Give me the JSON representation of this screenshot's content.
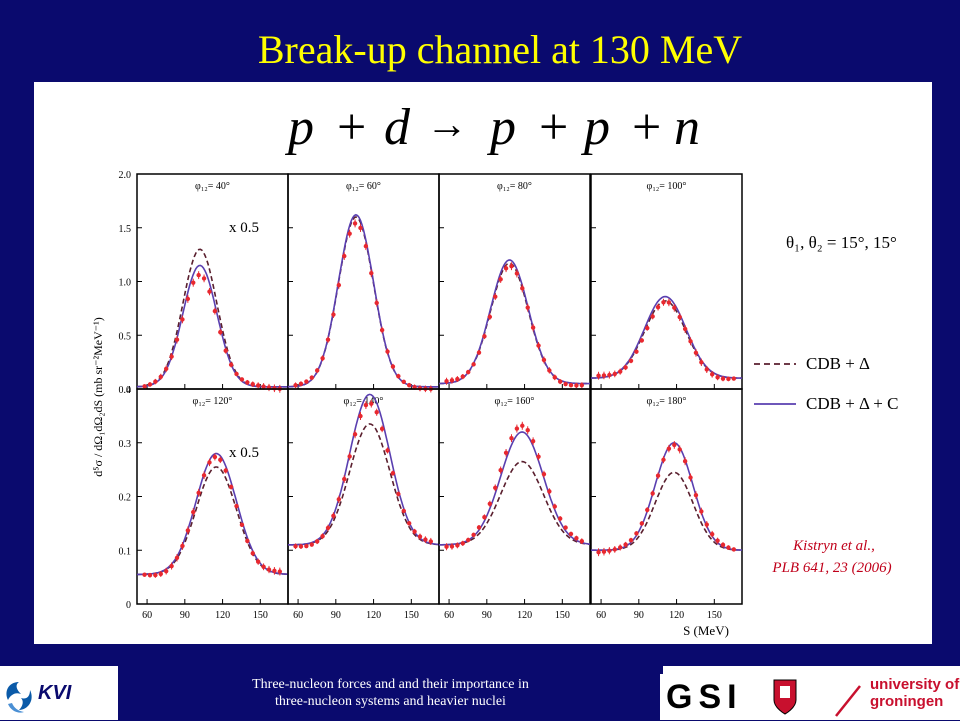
{
  "slide": {
    "title": "Break-up channel at 130 MeV",
    "footer_line1": "Three-nucleon forces and and their importance in",
    "footer_line2": "three-nucleon systems and heavier nuclei",
    "logo_kvi": "KVI",
    "logo_gsi": "GSI",
    "logo_ug_line1": "university of",
    "logo_ug_line2": "groningen",
    "colors": {
      "background": "#0a0a6e",
      "title": "#ffff00",
      "data_points": "#e8282f",
      "solid_curve": "#5a3fb0",
      "dashed_curve": "#5a1f2e",
      "reference": "#c0001a"
    }
  },
  "chart_data": {
    "type": "line",
    "reaction": {
      "p1": "p",
      "op1": "+",
      "d": "d",
      "arrow": "→",
      "p2": "p",
      "op2": "+",
      "p3": "p",
      "op3": "+",
      "n": "n"
    },
    "ylabel": "d⁵σ / dΩ₁dΩ₂dS (mb sr⁻²MeV⁻¹)",
    "xlabel": "S (MeV)",
    "xlim": [
      52,
      172
    ],
    "xticks": [
      "60",
      "90",
      "120",
      "150"
    ],
    "angles": "θ₁, θ₂ = 15°, 15°",
    "legend": {
      "dashed": "CDB + Δ",
      "solid": "CDB + Δ + C"
    },
    "reference_line1": "Kistryn et al.,",
    "reference_line2": "PLB 641, 23 (2006)",
    "rows": [
      {
        "ylim": [
          0,
          2.0
        ],
        "yticks": [
          "2.0",
          "1.5",
          "1.0",
          "0.5",
          "0"
        ],
        "scale_note": "x 0.5",
        "panels": [
          {
            "label": "φ₁₂= 40°",
            "peak_x": 102,
            "width": 13.5,
            "baseline": 0.02,
            "dashed_peak": 1.3,
            "solid_peak": 1.15,
            "data_peak": 1.08
          },
          {
            "label": "φ₁₂= 60°",
            "peak_x": 106,
            "width": 14,
            "baseline": 0.02,
            "dashed_peak": 1.6,
            "solid_peak": 1.62,
            "data_peak": 1.56
          },
          {
            "label": "φ₁₂= 80°",
            "peak_x": 108,
            "width": 15,
            "baseline": 0.05,
            "dashed_peak": 1.17,
            "solid_peak": 1.2,
            "data_peak": 1.15
          },
          {
            "label": "φ₁₂= 100°",
            "peak_x": 111,
            "width": 16.5,
            "baseline": 0.1,
            "dashed_peak": 0.82,
            "solid_peak": 0.86,
            "data_peak": 0.8
          }
        ]
      },
      {
        "ylim": [
          0,
          0.4
        ],
        "yticks": [
          "0.4",
          "0.3",
          "0.2",
          "0.1",
          "0"
        ],
        "scale_note": "x 0.5",
        "panels": [
          {
            "label": "φ₁₂= 120°",
            "peak_x": 115,
            "width": 16,
            "baseline": 0.055,
            "dashed_peak": 0.255,
            "solid_peak": 0.28,
            "data_peak": 0.272
          },
          {
            "label": "φ₁₂= 140°",
            "peak_x": 117,
            "width": 16,
            "baseline": 0.11,
            "dashed_peak": 0.335,
            "solid_peak": 0.39,
            "data_peak": 0.375
          },
          {
            "label": "φ₁₂= 160°",
            "peak_x": 118,
            "width": 17,
            "baseline": 0.11,
            "dashed_peak": 0.265,
            "solid_peak": 0.32,
            "data_peak": 0.335
          },
          {
            "label": "φ₁₂= 180°",
            "peak_x": 118,
            "width": 15,
            "baseline": 0.1,
            "dashed_peak": 0.245,
            "solid_peak": 0.3,
            "data_peak": 0.3
          }
        ]
      }
    ]
  }
}
